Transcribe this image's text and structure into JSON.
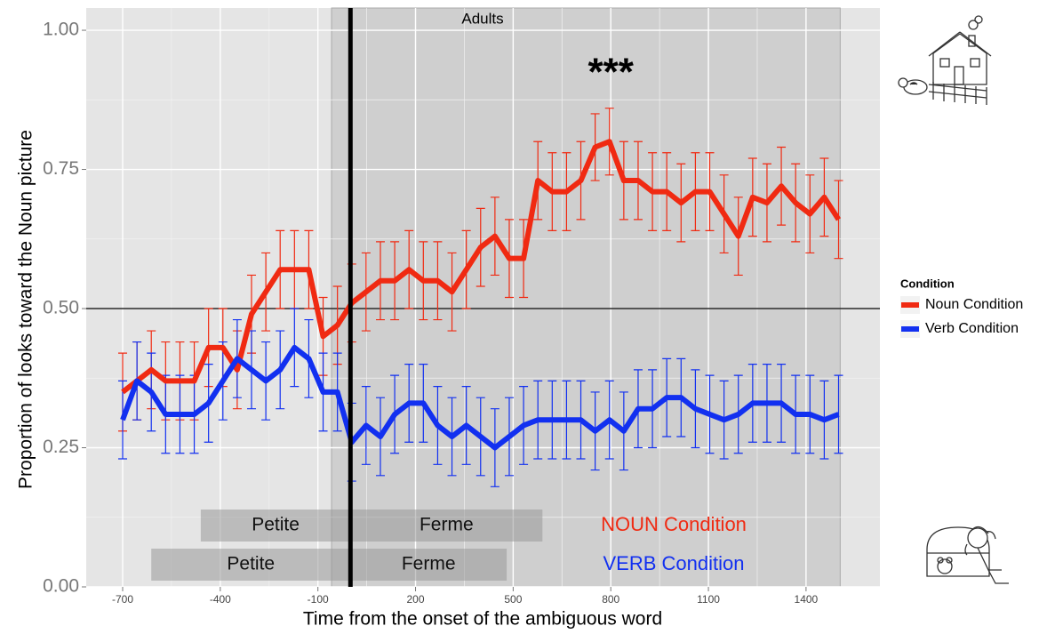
{
  "chart_data": {
    "type": "line",
    "title": "Adults",
    "x_label": "Time from the onset of the ambiguous word",
    "y_label": "Proportion of looks toward the Noun picture",
    "x": [
      -700,
      -656,
      -612,
      -568,
      -524,
      -480,
      -436,
      -392,
      -348,
      -304,
      -260,
      -216,
      -172,
      -128,
      -84,
      -40,
      4,
      48,
      92,
      136,
      180,
      224,
      268,
      312,
      356,
      400,
      444,
      488,
      532,
      576,
      620,
      664,
      708,
      752,
      796,
      840,
      884,
      928,
      972,
      1016,
      1060,
      1104,
      1148,
      1192,
      1236,
      1280,
      1324,
      1368,
      1412,
      1456,
      1500
    ],
    "series": [
      {
        "name": "Noun Condition",
        "color": "#f02a12",
        "values": [
          0.35,
          0.37,
          0.39,
          0.37,
          0.37,
          0.37,
          0.43,
          0.43,
          0.39,
          0.49,
          0.53,
          0.57,
          0.57,
          0.57,
          0.45,
          0.47,
          0.51,
          0.53,
          0.55,
          0.55,
          0.57,
          0.55,
          0.55,
          0.53,
          0.57,
          0.61,
          0.63,
          0.59,
          0.59,
          0.73,
          0.71,
          0.71,
          0.73,
          0.79,
          0.8,
          0.73,
          0.73,
          0.71,
          0.71,
          0.69,
          0.71,
          0.71,
          0.67,
          0.63,
          0.7,
          0.69,
          0.72,
          0.69,
          0.67,
          0.7,
          0.66
        ],
        "errors": [
          0.07,
          0.07,
          0.07,
          0.07,
          0.07,
          0.07,
          0.07,
          0.07,
          0.07,
          0.07,
          0.07,
          0.07,
          0.07,
          0.07,
          0.07,
          0.07,
          0.07,
          0.07,
          0.07,
          0.07,
          0.07,
          0.07,
          0.07,
          0.07,
          0.07,
          0.07,
          0.07,
          0.07,
          0.07,
          0.07,
          0.07,
          0.07,
          0.07,
          0.06,
          0.06,
          0.07,
          0.07,
          0.07,
          0.07,
          0.07,
          0.07,
          0.07,
          0.07,
          0.07,
          0.07,
          0.07,
          0.07,
          0.07,
          0.07,
          0.07,
          0.07
        ]
      },
      {
        "name": "Verb Condition",
        "color": "#1230f0",
        "values": [
          0.3,
          0.37,
          0.35,
          0.31,
          0.31,
          0.31,
          0.33,
          0.37,
          0.41,
          0.39,
          0.37,
          0.39,
          0.43,
          0.41,
          0.35,
          0.35,
          0.26,
          0.29,
          0.27,
          0.31,
          0.33,
          0.33,
          0.29,
          0.27,
          0.29,
          0.27,
          0.25,
          0.27,
          0.29,
          0.3,
          0.3,
          0.3,
          0.3,
          0.28,
          0.3,
          0.28,
          0.32,
          0.32,
          0.34,
          0.34,
          0.32,
          0.31,
          0.3,
          0.31,
          0.33,
          0.33,
          0.33,
          0.31,
          0.31,
          0.3,
          0.31
        ],
        "errors": [
          0.07,
          0.07,
          0.07,
          0.07,
          0.07,
          0.07,
          0.07,
          0.07,
          0.07,
          0.07,
          0.07,
          0.07,
          0.07,
          0.07,
          0.07,
          0.07,
          0.07,
          0.07,
          0.07,
          0.07,
          0.07,
          0.07,
          0.07,
          0.07,
          0.07,
          0.07,
          0.07,
          0.07,
          0.07,
          0.07,
          0.07,
          0.07,
          0.07,
          0.07,
          0.07,
          0.07,
          0.07,
          0.07,
          0.07,
          0.07,
          0.07,
          0.07,
          0.07,
          0.07,
          0.07,
          0.07,
          0.07,
          0.07,
          0.07,
          0.07,
          0.07
        ]
      }
    ],
    "xlim": [
      -812,
      1627
    ],
    "ylim": [
      0,
      1.04
    ],
    "xticks": [
      -700,
      -400,
      -100,
      200,
      500,
      800,
      1100,
      1400
    ],
    "yticks": [
      {
        "value": 0,
        "label": "0.00"
      },
      {
        "value": 0.25,
        "label": "0.25"
      },
      {
        "value": 0.5,
        "label": "0.50"
      },
      {
        "value": 0.75,
        "label": "0.75"
      },
      {
        "value": 1,
        "label": "1.00"
      }
    ],
    "grid": true,
    "shaded_region": [
      -58,
      1505
    ],
    "onset_line": 0,
    "reference_line": 0.5,
    "annotation": "***",
    "annotation_x": 800,
    "annotation_y": 0.92,
    "word_rows": [
      {
        "label": "NOUN Condition",
        "color": "#f02a12",
        "words": [
          {
            "text": "Petite",
            "start": -460,
            "end": 0
          },
          {
            "text": "Ferme",
            "start": 0,
            "end": 590
          }
        ]
      },
      {
        "label": "VERB Condition",
        "color": "#1230f0",
        "words": [
          {
            "text": "Petite",
            "start": -612,
            "end": 0
          },
          {
            "text": "Ferme",
            "start": 0,
            "end": 480
          }
        ]
      }
    ],
    "legend_title": "Condition",
    "legend_position": "right"
  }
}
